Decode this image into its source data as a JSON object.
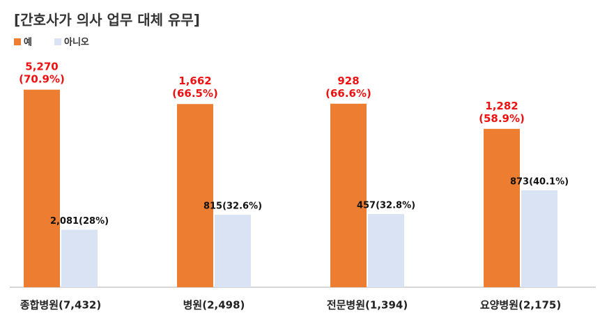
{
  "chart_data": {
    "type": "bar",
    "title": "[간호사가 의사 업무 대체 유무]",
    "categories": [
      "종합병원(7,432)",
      "병원(2,498)",
      "전문병원(1,394)",
      "요양병원(2,175)"
    ],
    "series": [
      {
        "name": "예",
        "color": "#ed7d31",
        "values": [
          70.9,
          66.5,
          66.6,
          58.9
        ],
        "value_labels": [
          "5,270\n(70.9%)",
          "1,662\n(66.5%)",
          "928\n(66.6%)",
          "1,282\n(58.9%)"
        ],
        "label_color": "#ee1111"
      },
      {
        "name": "아니오",
        "color": "#dae3f3",
        "values": [
          28,
          32.6,
          32.8,
          40.1
        ],
        "value_labels": [
          "2,081(28%)",
          "815(32.6%)",
          "457(32.8%)",
          "873(40.1%)"
        ],
        "label_color": "#111111"
      }
    ],
    "ylim": [
      10.4,
      80
    ],
    "legend": "top-left"
  }
}
